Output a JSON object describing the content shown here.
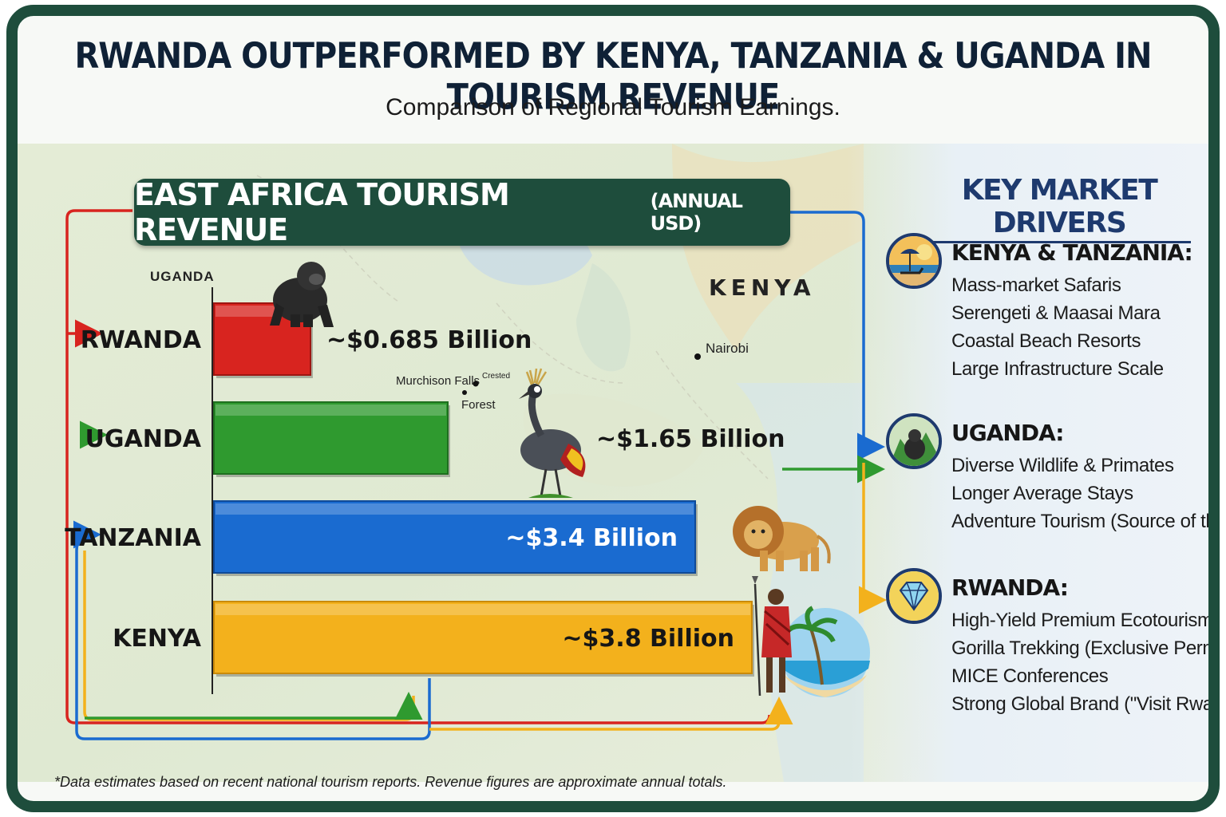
{
  "header": {
    "title": "RWANDA OUTPERFORMED BY KENYA, TANZANIA & UGANDA IN TOURISM REVENUE",
    "subtitle": "Comparison of Regional Tourism Earnings."
  },
  "chart_header": {
    "title": "EAST AFRICA TOURISM REVENUE",
    "unit": "(ANNUAL USD)"
  },
  "chart_data": {
    "type": "bar",
    "orientation": "horizontal",
    "title": "EAST AFRICA TOURISM REVENUE (ANNUAL USD)",
    "categories": [
      "RWANDA",
      "UGANDA",
      "TANZANIA",
      "KENYA"
    ],
    "values": [
      0.685,
      1.65,
      3.4,
      3.8
    ],
    "value_labels": [
      "~$0.685 Billion",
      "~$1.65 Billion",
      "~$3.4 Billion",
      "~$3.8 Billion"
    ],
    "colors": [
      "#d8241f",
      "#2f9a2f",
      "#1a6bd0",
      "#f3b11c"
    ],
    "xlim": [
      0,
      3.8
    ],
    "grid": false,
    "legend": "none"
  },
  "map_labels": {
    "uganda": "UGANDA",
    "kenya": "KENYA",
    "nairobi": "Nairobi",
    "murchison": "Murchison Falls",
    "forest": "Forest",
    "crested": "Crested"
  },
  "drivers": {
    "title": "KEY MARKET DRIVERS",
    "groups": [
      {
        "heading": "KENYA & TANZANIA:",
        "icon": "beach-umbrella-icon",
        "items": [
          "Mass-market Safaris",
          "Serengeti & Maasai Mara",
          "Coastal Beach Resorts",
          "Large Infrastructure Scale"
        ]
      },
      {
        "heading": "UGANDA:",
        "icon": "gorilla-icon",
        "items": [
          "Diverse Wildlife & Primates",
          "Longer Average Stays",
          "Adventure Tourism (Source of the Nile)"
        ]
      },
      {
        "heading": "RWANDA:",
        "icon": "diamond-icon",
        "items": [
          "High-Yield Premium Ecotourism",
          "Gorilla Trekking (Exclusive Permits)",
          "MICE Conferences",
          "Strong Global Brand (\"Visit Rwanda\")"
        ]
      }
    ]
  },
  "footnote": "*Data estimates based on recent national tourism reports. Revenue figures are approximate annual totals.",
  "colors": {
    "frame": "#1e4d3c",
    "heading_blue": "#1e3a6e",
    "arrow_red": "#d8241f",
    "arrow_green": "#2f9a2f",
    "arrow_blue": "#1a6bd0",
    "arrow_yellow": "#f3b11c"
  }
}
